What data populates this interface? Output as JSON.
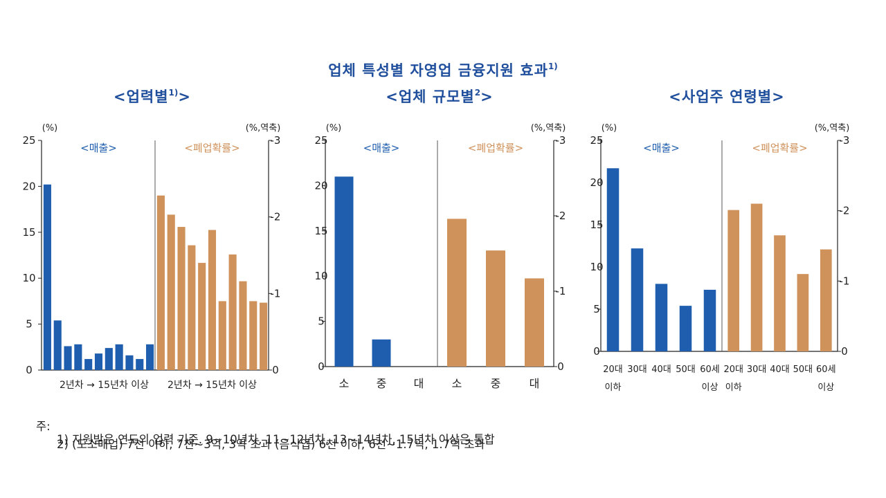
{
  "title": {
    "text": "업체 특성별 자영업 금융지원 효과",
    "sup": "1)"
  },
  "colors": {
    "sales": "#1f5eae",
    "closure": "#d0925b",
    "title": "#1f4e9c",
    "axis": "#222222"
  },
  "chart_data": [
    {
      "type": "bar",
      "title": "<업력별",
      "title_sup": "1)",
      "title_end": ">",
      "left_unit": "(%)",
      "right_unit": "(%,역축)",
      "left_ticks": [
        "25",
        "20",
        "15",
        "10",
        "5",
        "0"
      ],
      "right_ticks": [
        "-3",
        "-2",
        "-1",
        "0"
      ],
      "left_ylim": [
        0,
        25
      ],
      "right_ylim": [
        0,
        -3
      ],
      "right_inverted": true,
      "panel_labels": [
        "<매출>",
        "<폐업확률>"
      ],
      "group_labels": [
        "2년차 → 15년차 이상",
        "2년차 → 15년차 이상"
      ],
      "series": [
        {
          "name": "<매출>",
          "axis": "left",
          "values": [
            20.2,
            5.4,
            2.6,
            2.8,
            1.2,
            1.8,
            2.4,
            2.8,
            1.6,
            1.2,
            2.8
          ]
        },
        {
          "name": "<폐업확률>",
          "axis": "right",
          "values": [
            -2.28,
            -2.03,
            -1.87,
            -1.63,
            -1.4,
            -1.83,
            -0.9,
            -1.51,
            -1.16,
            -0.9,
            -0.88
          ]
        }
      ]
    },
    {
      "type": "bar",
      "title": "<업체 규모별",
      "title_sup": "2",
      "title_end": ">",
      "left_unit": "(%)",
      "right_unit": "(%,역축)",
      "left_ticks": [
        "25",
        "20",
        "15",
        "10",
        "5",
        "0"
      ],
      "right_ticks": [
        "-3",
        "-2",
        "-1",
        "0"
      ],
      "left_ylim": [
        0,
        25
      ],
      "right_ylim": [
        0,
        -3
      ],
      "right_inverted": true,
      "panel_labels": [
        "<매출>",
        "<폐업확률>"
      ],
      "categories_left": [
        "소",
        "중",
        "대"
      ],
      "categories_right": [
        "소",
        "중",
        "대"
      ],
      "series": [
        {
          "name": "<매출>",
          "axis": "left",
          "values": [
            21.0,
            3.0,
            0
          ]
        },
        {
          "name": "<폐업확률>",
          "axis": "right",
          "values": [
            -1.96,
            -1.54,
            -1.17
          ]
        }
      ]
    },
    {
      "type": "bar",
      "title": "<사업주 연령별",
      "title_sup": "",
      "title_end": ">",
      "left_unit": "(%)",
      "right_unit": "(%,역축)",
      "left_ticks": [
        "25",
        "20",
        "15",
        "10",
        "5",
        "0"
      ],
      "right_ticks": [
        "-3",
        "-2",
        "-1",
        "0"
      ],
      "left_ylim": [
        0,
        25
      ],
      "right_ylim": [
        0,
        -3
      ],
      "right_inverted": true,
      "panel_labels": [
        "<매출>",
        "<폐업확률>"
      ],
      "categories_left": [
        [
          "20대",
          "이하"
        ],
        [
          "30대"
        ],
        [
          "40대"
        ],
        [
          "50대"
        ],
        [
          "60세",
          "이상"
        ]
      ],
      "categories_right": [
        [
          "20대",
          "이하"
        ],
        [
          "30대"
        ],
        [
          "40대"
        ],
        [
          "50대"
        ],
        [
          "60세",
          "이상"
        ]
      ],
      "series": [
        {
          "name": "<매출>",
          "axis": "left",
          "values": [
            21.7,
            12.2,
            8.0,
            5.4,
            7.3
          ]
        },
        {
          "name": "<폐업확률>",
          "axis": "right",
          "values": [
            -2.01,
            -2.1,
            -1.65,
            -1.1,
            -1.45
          ]
        }
      ]
    }
  ],
  "notes": {
    "prefix": "주:",
    "lines": [
      "1) 지원받은 연도의 업력 기준. 9~10년차, 11~12년차, 13~14년차, 15년차 이상은 통합",
      "2) (도소매업) 7천 이하, 7천~3억, 3억 초과 (음식업) 6천 이하, 6천~1.7억, 1.7억 초과"
    ]
  }
}
